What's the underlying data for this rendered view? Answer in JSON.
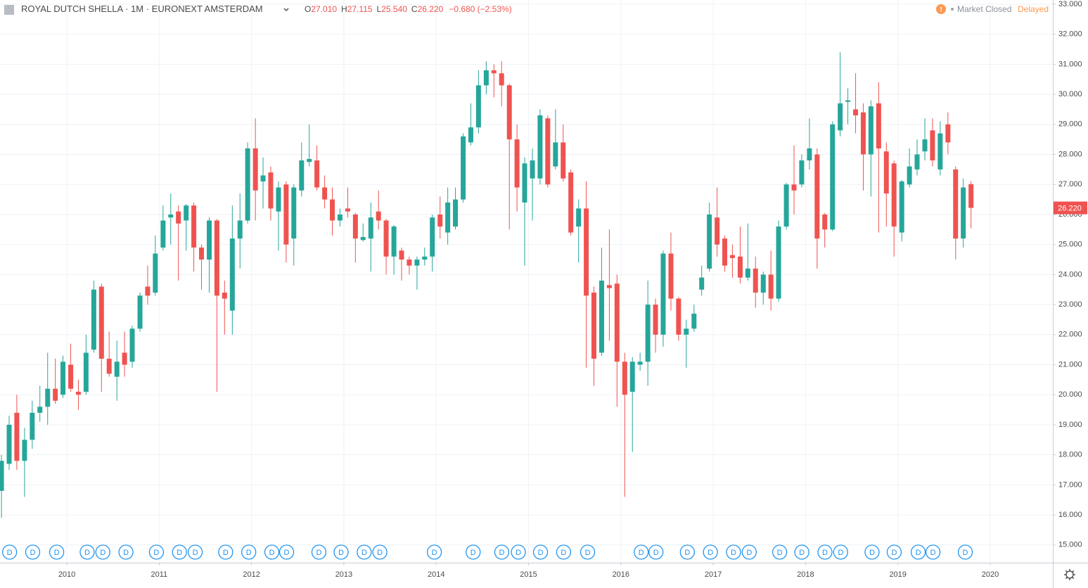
{
  "chart_data": {
    "type": "candlestick",
    "title": "ROYAL DUTCH SHELLA · 1M · EURONEXT AMSTERDAM",
    "legend": {
      "open_label": "O",
      "open": "27.010",
      "high_label": "H",
      "high": "27.115",
      "low_label": "L",
      "low": "25.540",
      "close_label": "C",
      "close": "26.220",
      "change": "−0.680 (−2.53%)"
    },
    "status": {
      "icon": "!",
      "market": "Market Closed",
      "delay": "Delayed"
    },
    "last_price": {
      "value": 26.22,
      "label": "26.220"
    },
    "up_color": "#26a69a",
    "down_color": "#ef5350",
    "grid": true,
    "xlim": [
      2009.276,
      2020.678
    ],
    "xticks": [
      2010,
      2011,
      2012,
      2013,
      2014,
      2015,
      2016,
      2017,
      2018,
      2019,
      2020
    ],
    "ylim": [
      14.41,
      33.14
    ],
    "yticks": [
      {
        "value": 15,
        "label": "15.000"
      },
      {
        "value": 16,
        "label": "16.000"
      },
      {
        "value": 17,
        "label": "17.000"
      },
      {
        "value": 18,
        "label": "18.000"
      },
      {
        "value": 19,
        "label": "19.000"
      },
      {
        "value": 20,
        "label": "20.000"
      },
      {
        "value": 21,
        "label": "21.000"
      },
      {
        "value": 22,
        "label": "22.000"
      },
      {
        "value": 23,
        "label": "23.000"
      },
      {
        "value": 24,
        "label": "24.000"
      },
      {
        "value": 25,
        "label": "25.000"
      },
      {
        "value": 26,
        "label": "26.000"
      },
      {
        "value": 27,
        "label": "27.000"
      },
      {
        "value": 28,
        "label": "28.000"
      },
      {
        "value": 29,
        "label": "29.000"
      },
      {
        "value": 30,
        "label": "30.000"
      },
      {
        "value": 31,
        "label": "31.000"
      },
      {
        "value": 32,
        "label": "32.000"
      },
      {
        "value": 33,
        "label": "33.000"
      }
    ],
    "x": [
      2009.292,
      2009.375,
      2009.458,
      2009.542,
      2009.625,
      2009.708,
      2009.792,
      2009.875,
      2009.958,
      2010.042,
      2010.125,
      2010.208,
      2010.292,
      2010.375,
      2010.458,
      2010.542,
      2010.625,
      2010.708,
      2010.792,
      2010.875,
      2010.958,
      2011.042,
      2011.125,
      2011.208,
      2011.292,
      2011.375,
      2011.458,
      2011.542,
      2011.625,
      2011.708,
      2011.792,
      2011.875,
      2011.958,
      2012.042,
      2012.125,
      2012.208,
      2012.292,
      2012.375,
      2012.458,
      2012.542,
      2012.625,
      2012.708,
      2012.792,
      2012.875,
      2012.958,
      2013.042,
      2013.125,
      2013.208,
      2013.292,
      2013.375,
      2013.458,
      2013.542,
      2013.625,
      2013.708,
      2013.792,
      2013.875,
      2013.958,
      2014.042,
      2014.125,
      2014.208,
      2014.292,
      2014.375,
      2014.458,
      2014.542,
      2014.625,
      2014.708,
      2014.792,
      2014.875,
      2014.958,
      2015.042,
      2015.125,
      2015.208,
      2015.292,
      2015.375,
      2015.458,
      2015.542,
      2015.625,
      2015.708,
      2015.792,
      2015.875,
      2015.958,
      2016.042,
      2016.125,
      2016.208,
      2016.292,
      2016.375,
      2016.458,
      2016.542,
      2016.625,
      2016.708,
      2016.792,
      2016.875,
      2016.958,
      2017.042,
      2017.125,
      2017.208,
      2017.292,
      2017.375,
      2017.458,
      2017.542,
      2017.625,
      2017.708,
      2017.792,
      2017.875,
      2017.958,
      2018.042,
      2018.125,
      2018.208,
      2018.292,
      2018.375,
      2018.458,
      2018.542,
      2018.625,
      2018.708,
      2018.792,
      2018.875,
      2018.958,
      2019.042,
      2019.125,
      2019.208,
      2019.292,
      2019.375,
      2019.458,
      2019.542,
      2019.625,
      2019.708,
      2019.792
    ],
    "open": [
      16.8,
      17.7,
      19.4,
      17.8,
      18.5,
      19.4,
      19.6,
      20.2,
      20.0,
      21.0,
      20.1,
      20.1,
      21.5,
      23.6,
      21.2,
      20.6,
      21.4,
      21.1,
      22.2,
      23.6,
      23.4,
      24.9,
      25.9,
      26.1,
      25.8,
      26.3,
      24.9,
      24.5,
      25.8,
      23.4,
      22.8,
      25.2,
      25.8,
      28.2,
      27.1,
      27.4,
      26.1,
      27.0,
      25.2,
      26.8,
      27.75,
      27.8,
      26.9,
      26.5,
      25.8,
      26.2,
      26.0,
      25.15,
      25.2,
      26.1,
      25.8,
      24.6,
      24.8,
      24.5,
      24.3,
      24.5,
      24.6,
      26.0,
      25.4,
      25.6,
      26.5,
      28.4,
      28.9,
      30.3,
      30.8,
      30.7,
      30.3,
      28.5,
      26.4,
      27.2,
      27.2,
      29.2,
      27.6,
      28.4,
      27.4,
      25.6,
      26.2,
      23.4,
      21.4,
      23.65,
      23.7,
      21.1,
      20.1,
      21.0,
      21.1,
      23.0,
      22.0,
      24.7,
      23.2,
      22.0,
      22.2,
      23.5,
      24.2,
      25.9,
      25.2,
      24.65,
      24.6,
      23.9,
      24.2,
      23.4,
      24.0,
      23.2,
      25.6,
      27.0,
      27.0,
      27.8,
      28.0,
      26.0,
      25.5,
      28.8,
      29.75,
      29.5,
      29.4,
      28.0,
      29.7,
      28.1,
      27.7,
      25.4,
      27.0,
      27.5,
      28.1,
      28.8,
      27.5,
      29.0,
      27.5,
      25.2,
      27.01
    ],
    "high": [
      18.0,
      19.3,
      20.0,
      18.9,
      19.8,
      20.3,
      21.4,
      21.2,
      21.3,
      21.7,
      20.5,
      22.0,
      23.8,
      23.7,
      22.1,
      21.8,
      22.1,
      22.3,
      23.4,
      24.3,
      25.3,
      26.3,
      26.7,
      26.3,
      26.35,
      26.4,
      25.0,
      25.9,
      25.85,
      23.8,
      26.3,
      26.7,
      28.4,
      29.2,
      27.9,
      27.6,
      27.1,
      27.1,
      27.0,
      28.4,
      29.0,
      28.3,
      27.3,
      26.9,
      26.2,
      26.9,
      26.05,
      25.7,
      26.4,
      26.8,
      25.85,
      25.65,
      24.9,
      24.6,
      24.6,
      24.9,
      26.0,
      26.6,
      26.9,
      26.9,
      28.7,
      29.7,
      30.8,
      31.1,
      31.0,
      31.1,
      30.35,
      29.0,
      27.9,
      28.2,
      29.5,
      29.3,
      29.5,
      29.0,
      27.5,
      26.5,
      27.1,
      23.6,
      24.9,
      25.5,
      24.0,
      21.4,
      21.25,
      21.4,
      23.8,
      23.2,
      24.8,
      25.4,
      23.25,
      22.5,
      23.0,
      24.3,
      26.4,
      26.9,
      25.3,
      25.0,
      25.6,
      25.7,
      24.6,
      24.1,
      24.8,
      25.8,
      27.05,
      28.3,
      28.0,
      29.2,
      28.2,
      26.05,
      29.1,
      31.4,
      30.2,
      30.7,
      29.7,
      29.8,
      30.4,
      28.4,
      27.8,
      27.15,
      28.2,
      28.5,
      29.2,
      29.2,
      29.1,
      29.4,
      27.6,
      27.2,
      27.115
    ],
    "low": [
      15.9,
      17.5,
      17.5,
      16.6,
      18.2,
      19.1,
      19.0,
      19.7,
      19.9,
      20.1,
      19.5,
      20.0,
      21.4,
      20.1,
      20.6,
      19.8,
      20.6,
      20.9,
      22.1,
      23.0,
      23.3,
      24.8,
      25.0,
      23.8,
      24.8,
      24.1,
      23.5,
      23.4,
      20.1,
      22.0,
      22.0,
      24.2,
      25.7,
      25.8,
      26.2,
      25.8,
      24.8,
      24.4,
      24.3,
      26.6,
      27.6,
      26.8,
      26.2,
      25.3,
      25.6,
      25.9,
      24.4,
      25.1,
      24.1,
      25.5,
      24.0,
      24.0,
      23.8,
      24.0,
      23.5,
      24.3,
      24.1,
      25.2,
      25.0,
      25.5,
      26.4,
      28.3,
      28.7,
      30.0,
      29.9,
      29.6,
      25.5,
      26.1,
      24.3,
      25.8,
      27.0,
      26.9,
      27.5,
      27.1,
      25.3,
      24.4,
      20.9,
      20.3,
      21.3,
      21.8,
      19.6,
      16.6,
      18.1,
      20.8,
      20.3,
      21.4,
      21.6,
      22.8,
      21.8,
      20.9,
      22.1,
      23.3,
      24.1,
      24.6,
      24.1,
      23.9,
      23.7,
      23.8,
      22.9,
      23.0,
      22.8,
      23.1,
      25.5,
      26.0,
      26.9,
      27.5,
      24.2,
      24.9,
      25.45,
      28.6,
      29.0,
      28.7,
      26.8,
      26.6,
      25.4,
      25.6,
      24.6,
      25.1,
      26.9,
      27.3,
      27.8,
      27.6,
      27.3,
      28.0,
      24.5,
      24.9,
      25.54
    ],
    "close": [
      17.8,
      19.0,
      17.8,
      18.5,
      19.4,
      19.6,
      20.2,
      19.8,
      21.1,
      20.2,
      20.0,
      21.4,
      23.5,
      21.2,
      20.7,
      21.1,
      21.0,
      22.2,
      23.3,
      23.3,
      24.7,
      25.8,
      26.0,
      25.7,
      26.3,
      24.9,
      24.5,
      25.8,
      23.3,
      23.2,
      25.2,
      25.8,
      28.2,
      26.8,
      27.3,
      26.2,
      26.9,
      25.0,
      26.9,
      27.8,
      27.85,
      26.9,
      26.5,
      25.8,
      26.0,
      26.1,
      25.2,
      25.25,
      25.9,
      25.8,
      24.6,
      25.6,
      24.5,
      24.3,
      24.5,
      24.6,
      25.9,
      25.6,
      26.4,
      26.5,
      28.6,
      28.9,
      30.3,
      30.8,
      30.7,
      30.3,
      28.5,
      26.9,
      27.7,
      27.8,
      29.3,
      27.0,
      28.4,
      27.2,
      25.4,
      26.2,
      23.3,
      21.2,
      23.8,
      23.55,
      21.1,
      20.0,
      21.1,
      21.1,
      23.0,
      22.0,
      24.7,
      23.2,
      22.0,
      22.2,
      22.7,
      23.9,
      26.0,
      25.0,
      24.3,
      24.55,
      23.9,
      24.2,
      23.4,
      24.0,
      23.2,
      25.6,
      27.0,
      26.8,
      27.8,
      28.2,
      25.2,
      25.5,
      29.0,
      29.7,
      29.8,
      29.3,
      28.0,
      29.6,
      28.2,
      26.7,
      25.6,
      27.1,
      27.6,
      28.0,
      28.5,
      27.8,
      28.7,
      28.4,
      25.2,
      26.9,
      26.22
    ],
    "dividends": {
      "label": "D",
      "color": "#2196f3",
      "x": [
        2009.38,
        2009.63,
        2009.89,
        2010.22,
        2010.39,
        2010.64,
        2010.97,
        2011.22,
        2011.39,
        2011.72,
        2011.97,
        2012.22,
        2012.38,
        2012.73,
        2012.97,
        2013.22,
        2013.39,
        2013.98,
        2014.4,
        2014.71,
        2014.89,
        2015.13,
        2015.38,
        2015.64,
        2016.22,
        2016.38,
        2016.72,
        2016.97,
        2017.22,
        2017.39,
        2017.72,
        2017.96,
        2018.21,
        2018.38,
        2018.72,
        2018.96,
        2019.22,
        2019.38,
        2019.73
      ]
    }
  }
}
